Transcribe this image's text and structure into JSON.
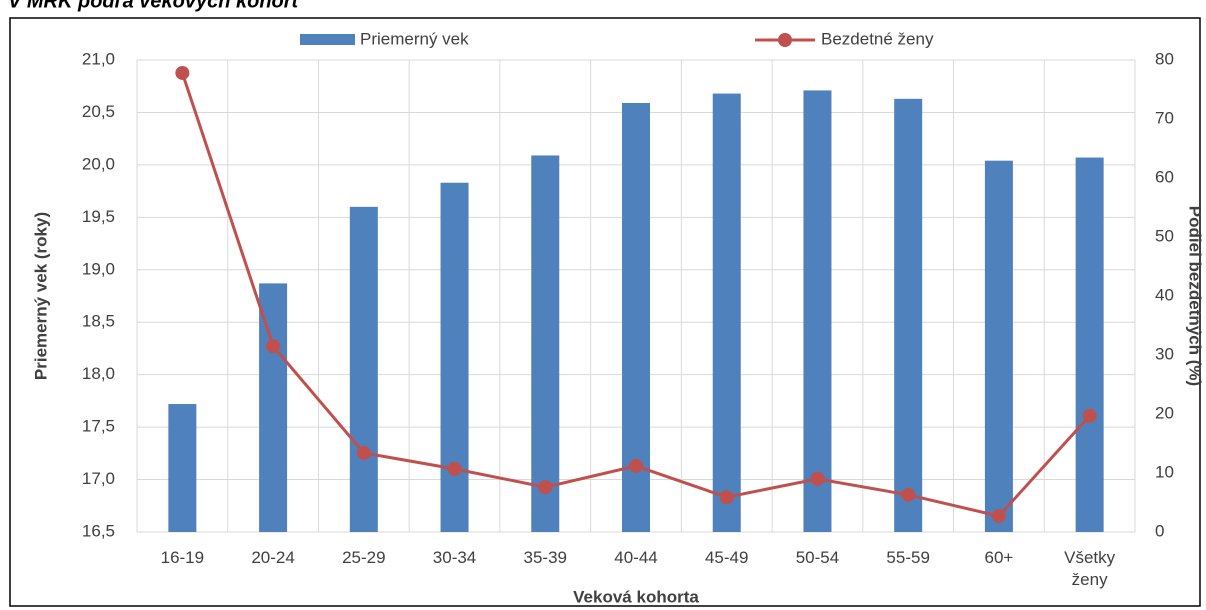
{
  "chart_data": {
    "type": "bar-line",
    "title": "V MRK podľa vekových kohort",
    "x_label": "Veková kohorta",
    "y_label": "Priemerný vek (roky)",
    "y2_label": "Podiel bezdetných (%)",
    "categories": [
      "16-19",
      "20-24",
      "25-29",
      "30-34",
      "35-39",
      "40-44",
      "45-49",
      "50-54",
      "55-59",
      "60+",
      "Všetky ženy"
    ],
    "series": [
      {
        "name": "Priemerný vek",
        "color": "#4f81bd",
        "kind": "bar",
        "values": [
          17.72,
          18.87,
          19.6,
          19.83,
          20.09,
          20.59,
          20.68,
          20.71,
          20.63,
          20.04,
          20.07
        ]
      },
      {
        "name": "Bezdetné ženy",
        "color": "#c0504d",
        "kind": "line",
        "axis": "y2",
        "values": [
          77.8,
          31.5,
          13.4,
          10.7,
          7.6,
          11.2,
          5.9,
          9.0,
          6.3,
          2.7,
          19.7
        ]
      }
    ],
    "ylim": [
      16.5,
      21.0
    ],
    "yticks": [
      {
        "value": 16.5,
        "label": "16,5"
      },
      {
        "value": 17.0,
        "label": "17,0"
      },
      {
        "value": 17.5,
        "label": "17,5"
      },
      {
        "value": 18.0,
        "label": "18,0"
      },
      {
        "value": 18.5,
        "label": "18,5"
      },
      {
        "value": 19.0,
        "label": "19,0"
      },
      {
        "value": 19.5,
        "label": "19,5"
      },
      {
        "value": 20.0,
        "label": "20,0"
      },
      {
        "value": 20.5,
        "label": "20,5"
      },
      {
        "value": 21.0,
        "label": "21,0"
      }
    ],
    "y2lim": [
      0,
      80
    ],
    "y2ticks": [
      0,
      10,
      20,
      30,
      40,
      50,
      60,
      70,
      80
    ],
    "grid": true
  }
}
